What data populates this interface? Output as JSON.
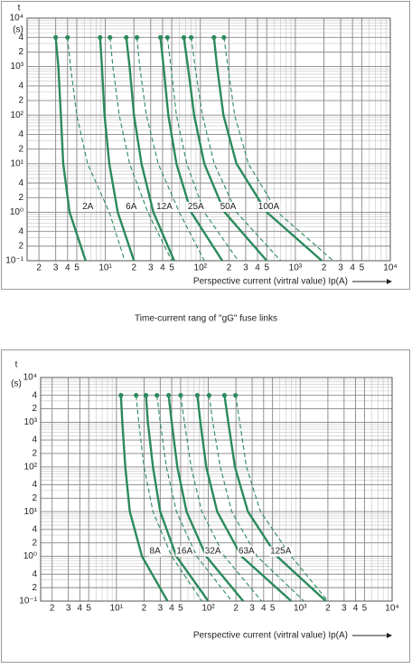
{
  "chart_data": [
    {
      "type": "line",
      "ylabel": "t",
      "yunit": "(s)",
      "xlabel": "Perspective current (virtral value) Ip(A)",
      "caption": "Time-current rang of  \"gG\" fuse links",
      "log_x": true,
      "log_y": true,
      "grid": true,
      "minor_grid": true,
      "color": "#2b8a5c",
      "xlim": [
        1.5,
        10000
      ],
      "ylim": [
        0.1,
        10000
      ],
      "xticks": [
        2,
        3,
        4,
        5,
        {
          "value": 10,
          "label": "10¹"
        },
        {
          "value": 20,
          "label": "2"
        },
        {
          "value": 30,
          "label": "3"
        },
        {
          "value": 40,
          "label": "4"
        },
        {
          "value": 50,
          "label": "5"
        },
        {
          "value": 100,
          "label": "10²"
        },
        {
          "value": 200,
          "label": "2"
        },
        {
          "value": 300,
          "label": "3"
        },
        {
          "value": 400,
          "label": "4"
        },
        {
          "value": 500,
          "label": "5"
        },
        {
          "value": 1000,
          "label": "10³"
        },
        {
          "value": 2000,
          "label": "2"
        },
        {
          "value": 3000,
          "label": "3"
        },
        {
          "value": 4000,
          "label": "4"
        },
        {
          "value": 5000,
          "label": "5"
        },
        {
          "value": 10000,
          "label": "10⁴"
        }
      ],
      "yticks": [
        {
          "value": 10000,
          "label": "10⁴"
        },
        {
          "value": 4000,
          "label": "4"
        },
        {
          "value": 2000,
          "label": "2"
        },
        {
          "value": 1000,
          "label": "10³"
        },
        {
          "value": 400,
          "label": "4"
        },
        {
          "value": 200,
          "label": "2"
        },
        {
          "value": 100,
          "label": "10²"
        },
        {
          "value": 40,
          "label": "4"
        },
        {
          "value": 20,
          "label": "2"
        },
        {
          "value": 10,
          "label": "10¹"
        },
        4,
        2,
        {
          "value": 1,
          "label": "10⁰"
        },
        {
          "value": 0.4,
          "label": "4"
        },
        {
          "value": 0.2,
          "label": "2"
        },
        {
          "value": 0.1,
          "label": "10⁻¹"
        }
      ],
      "series": [
        {
          "name": "2A",
          "curves": [
            {
              "style": "solid",
              "x": [
                3,
                3.2,
                3.4,
                3.6,
                4.2,
                6.2
              ],
              "values": [
                4000,
                1000,
                100,
                10,
                1,
                0.1
              ]
            },
            {
              "style": "dashed",
              "x": [
                4,
                4.3,
                5,
                6.5,
                11,
                16
              ],
              "values": [
                4000,
                1000,
                100,
                10,
                1,
                0.1
              ]
            }
          ]
        },
        {
          "name": "6A",
          "curves": [
            {
              "style": "solid",
              "x": [
                8.8,
                9.2,
                9.8,
                11,
                13.5,
                20
              ],
              "values": [
                4000,
                1000,
                100,
                10,
                1,
                0.1
              ]
            },
            {
              "style": "dashed",
              "x": [
                11.2,
                12,
                14,
                18,
                28,
                50
              ],
              "values": [
                4000,
                1000,
                100,
                10,
                1,
                0.1
              ]
            }
          ]
        },
        {
          "name": "12A",
          "curves": [
            {
              "style": "solid",
              "x": [
                16.6,
                18,
                20,
                24,
                32,
                53
              ],
              "values": [
                4000,
                1000,
                100,
                10,
                1,
                0.1
              ]
            },
            {
              "style": "dashed",
              "x": [
                21.5,
                23,
                27,
                36,
                60,
                110
              ],
              "values": [
                4000,
                1000,
                100,
                10,
                1,
                0.1
              ]
            }
          ]
        },
        {
          "name": "25A",
          "curves": [
            {
              "style": "solid",
              "x": [
                38,
                41,
                46,
                56,
                80,
                170
              ],
              "values": [
                4000,
                1000,
                100,
                10,
                1,
                0.1
              ]
            },
            {
              "style": "dashed",
              "x": [
                45,
                49,
                56,
                72,
                110,
                250
              ],
              "values": [
                4000,
                1000,
                100,
                10,
                1,
                0.1
              ]
            }
          ]
        },
        {
          "name": "50A",
          "curves": [
            {
              "style": "solid",
              "x": [
                67,
                74,
                86,
                110,
                180,
                500
              ],
              "values": [
                4000,
                1000,
                100,
                10,
                1,
                0.1
              ]
            },
            {
              "style": "dashed",
              "x": [
                80,
                88,
                105,
                140,
                240,
                700
              ],
              "values": [
                4000,
                1000,
                100,
                10,
                1,
                0.1
              ]
            }
          ]
        },
        {
          "name": "100A",
          "curves": [
            {
              "style": "solid",
              "x": [
                139,
                150,
                175,
                240,
                500,
                1900
              ],
              "values": [
                4000,
                1000,
                100,
                10,
                1,
                0.1
              ]
            },
            {
              "style": "dashed",
              "x": [
                177,
                195,
                230,
                320,
                650,
                2500
              ],
              "values": [
                4000,
                1000,
                100,
                10,
                1,
                0.1
              ]
            }
          ]
        }
      ]
    },
    {
      "type": "line",
      "ylabel": "t",
      "yunit": "(s)",
      "xlabel": "Perspective current (virtral value) Ip(A)",
      "log_x": true,
      "log_y": true,
      "grid": true,
      "minor_grid": true,
      "color": "#2b8a5c",
      "xlim": [
        1.5,
        10000
      ],
      "ylim": [
        0.1,
        10000
      ],
      "xticks": [
        2,
        3,
        4,
        5,
        {
          "value": 10,
          "label": "10¹"
        },
        {
          "value": 20,
          "label": "2"
        },
        {
          "value": 30,
          "label": "3"
        },
        {
          "value": 40,
          "label": "4"
        },
        {
          "value": 50,
          "label": "5"
        },
        {
          "value": 100,
          "label": "10²"
        },
        {
          "value": 200,
          "label": "2"
        },
        {
          "value": 300,
          "label": "3"
        },
        {
          "value": 400,
          "label": "4"
        },
        {
          "value": 500,
          "label": "5"
        },
        {
          "value": 1000,
          "label": "10³"
        },
        {
          "value": 2000,
          "label": "2"
        },
        {
          "value": 3000,
          "label": "3"
        },
        {
          "value": 4000,
          "label": "4"
        },
        {
          "value": 5000,
          "label": "5"
        },
        {
          "value": 10000,
          "label": "10⁴"
        }
      ],
      "yticks": [
        {
          "value": 10000,
          "label": "10⁴"
        },
        {
          "value": 4000,
          "label": "4"
        },
        {
          "value": 2000,
          "label": "2"
        },
        {
          "value": 1000,
          "label": "10³"
        },
        {
          "value": 400,
          "label": "4"
        },
        {
          "value": 200,
          "label": "2"
        },
        {
          "value": 100,
          "label": "10²"
        },
        {
          "value": 40,
          "label": "4"
        },
        {
          "value": 20,
          "label": "2"
        },
        {
          "value": 10,
          "label": "10¹"
        },
        4,
        2,
        {
          "value": 1,
          "label": "10⁰"
        },
        {
          "value": 0.4,
          "label": "4"
        },
        {
          "value": 0.2,
          "label": "2"
        },
        {
          "value": 0.1,
          "label": "10⁻¹"
        }
      ],
      "series": [
        {
          "name": "8A",
          "curves": [
            {
              "style": "solid",
              "x": [
                11.2,
                11.6,
                12.5,
                14,
                19,
                36
              ],
              "values": [
                4000,
                1000,
                100,
                10,
                1,
                0.1
              ]
            },
            {
              "style": "dashed",
              "x": [
                16.4,
                17.5,
                20,
                25,
                40,
                85
              ],
              "values": [
                4000,
                1000,
                100,
                10,
                1,
                0.1
              ]
            }
          ]
        },
        {
          "name": "16A",
          "curves": [
            {
              "style": "solid",
              "x": [
                21,
                22,
                25,
                30,
                45,
                100
              ],
              "values": [
                4000,
                1000,
                100,
                10,
                1,
                0.1
              ]
            },
            {
              "style": "dashed",
              "x": [
                27.6,
                30,
                35,
                45,
                75,
                180
              ],
              "values": [
                4000,
                1000,
                100,
                10,
                1,
                0.1
              ]
            }
          ]
        },
        {
          "name": "32A",
          "curves": [
            {
              "style": "solid",
              "x": [
                37,
                40,
                46,
                58,
                95,
                240
              ],
              "values": [
                4000,
                1000,
                100,
                10,
                1,
                0.1
              ]
            },
            {
              "style": "dashed",
              "x": [
                50,
                55,
                65,
                85,
                150,
                380
              ],
              "values": [
                4000,
                1000,
                100,
                10,
                1,
                0.1
              ]
            }
          ]
        },
        {
          "name": "63A",
          "curves": [
            {
              "style": "solid",
              "x": [
                76,
                82,
                95,
                125,
                230,
                800
              ],
              "values": [
                4000,
                1000,
                100,
                10,
                1,
                0.1
              ]
            },
            {
              "style": "dashed",
              "x": [
                102,
                112,
                135,
                180,
                340,
                1100
              ],
              "values": [
                4000,
                1000,
                100,
                10,
                1,
                0.1
              ]
            }
          ]
        },
        {
          "name": "125A",
          "curves": [
            {
              "style": "solid",
              "x": [
                150,
                165,
                195,
                270,
                560,
                1900
              ],
              "values": [
                4000,
                1000,
                100,
                10,
                1,
                0.1
              ]
            },
            {
              "style": "dashed",
              "x": [
                198,
                220,
                260,
                370,
                800,
                2000
              ],
              "values": [
                4000,
                1000,
                100,
                10,
                1,
                0.1
              ]
            }
          ]
        }
      ]
    }
  ]
}
